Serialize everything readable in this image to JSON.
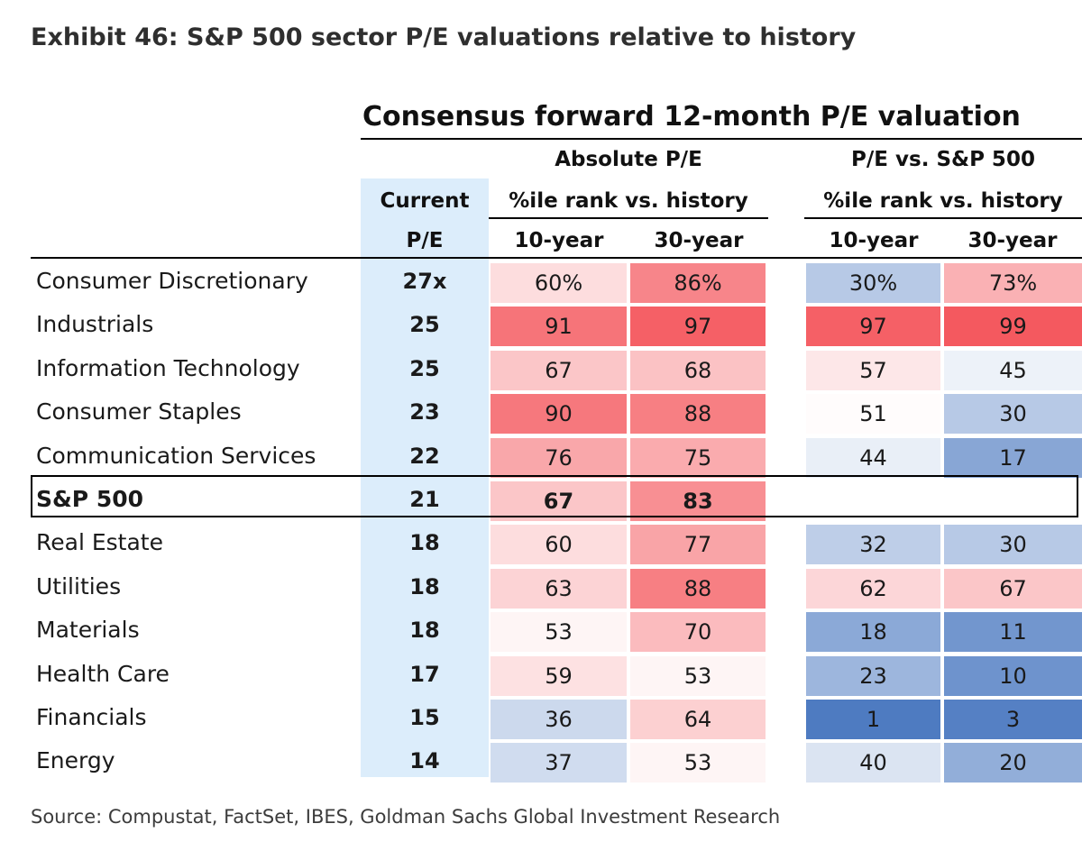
{
  "title": "Exhibit 46: S&P 500 sector P/E valuations relative to history",
  "section_title": "Consensus forward 12-month P/E valuation",
  "headers": {
    "current": "Current",
    "pe": "P/E",
    "absolute": "Absolute P/E",
    "relative": "P/E vs. S&P 500",
    "pct_rank_abs": "%ile rank vs. history",
    "pct_rank_rel": "%ile rank vs. history",
    "ten_year": "10-year",
    "thirty_year": "30-year"
  },
  "colors": {
    "high": "#f4565c",
    "mid": "#ffffff",
    "low": "#4a78c0",
    "pe_band": "#dcedfb"
  },
  "chart_data": {
    "type": "table",
    "rows": [
      {
        "sector": "Consumer Discretionary",
        "pe": "27x",
        "abs10": "60%",
        "abs30": "86%",
        "rel10": "30%",
        "rel30": "73%",
        "v": [
          60,
          86,
          30,
          73
        ]
      },
      {
        "sector": "Industrials",
        "pe": "25",
        "abs10": "91",
        "abs30": "97",
        "rel10": "97",
        "rel30": "99",
        "v": [
          91,
          97,
          97,
          99
        ]
      },
      {
        "sector": "Information Technology",
        "pe": "25",
        "abs10": "67",
        "abs30": "68",
        "rel10": "57",
        "rel30": "45",
        "v": [
          67,
          68,
          57,
          45
        ]
      },
      {
        "sector": "Consumer Staples",
        "pe": "23",
        "abs10": "90",
        "abs30": "88",
        "rel10": "51",
        "rel30": "30",
        "v": [
          90,
          88,
          51,
          30
        ]
      },
      {
        "sector": "Communication Services",
        "pe": "22",
        "abs10": "76",
        "abs30": "75",
        "rel10": "44",
        "rel30": "17",
        "v": [
          76,
          75,
          44,
          17
        ]
      },
      {
        "sector": "S&P 500",
        "pe": "21",
        "abs10": "67",
        "abs30": "83",
        "rel10": "",
        "rel30": "",
        "v": [
          67,
          83,
          null,
          null
        ],
        "highlight": true
      },
      {
        "sector": "Real Estate",
        "pe": "18",
        "abs10": "60",
        "abs30": "77",
        "rel10": "32",
        "rel30": "30",
        "v": [
          60,
          77,
          32,
          30
        ]
      },
      {
        "sector": "Utilities",
        "pe": "18",
        "abs10": "63",
        "abs30": "88",
        "rel10": "62",
        "rel30": "67",
        "v": [
          63,
          88,
          62,
          67
        ]
      },
      {
        "sector": "Materials",
        "pe": "18",
        "abs10": "53",
        "abs30": "70",
        "rel10": "18",
        "rel30": "11",
        "v": [
          53,
          70,
          18,
          11
        ]
      },
      {
        "sector": "Health Care",
        "pe": "17",
        "abs10": "59",
        "abs30": "53",
        "rel10": "23",
        "rel30": "10",
        "v": [
          59,
          53,
          23,
          10
        ]
      },
      {
        "sector": "Financials",
        "pe": "15",
        "abs10": "36",
        "abs30": "64",
        "rel10": "1",
        "rel30": "3",
        "v": [
          36,
          64,
          1,
          3
        ]
      },
      {
        "sector": "Energy",
        "pe": "14",
        "abs10": "37",
        "abs30": "53",
        "rel10": "40",
        "rel30": "20",
        "v": [
          37,
          53,
          40,
          20
        ]
      }
    ]
  },
  "source": "Source: Compustat, FactSet, IBES, Goldman Sachs Global Investment Research"
}
